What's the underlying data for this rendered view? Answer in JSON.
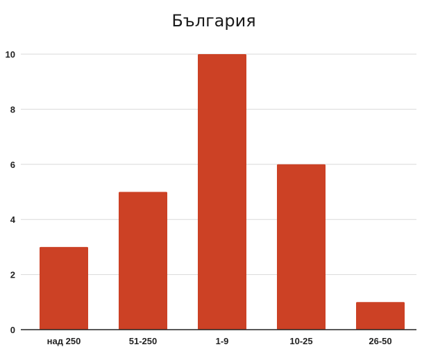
{
  "chart_data": {
    "type": "bar",
    "title": "България",
    "categories": [
      "над 250",
      "51-250",
      "1-9",
      "10-25",
      "26-50"
    ],
    "values": [
      3,
      5,
      10,
      6,
      1
    ],
    "xlabel": "",
    "ylabel": "",
    "ylim": [
      0,
      10
    ],
    "yticks": [
      "0",
      "2",
      "4",
      "6",
      "8",
      "10"
    ],
    "grid": true,
    "bar_color": "#cc4125"
  }
}
